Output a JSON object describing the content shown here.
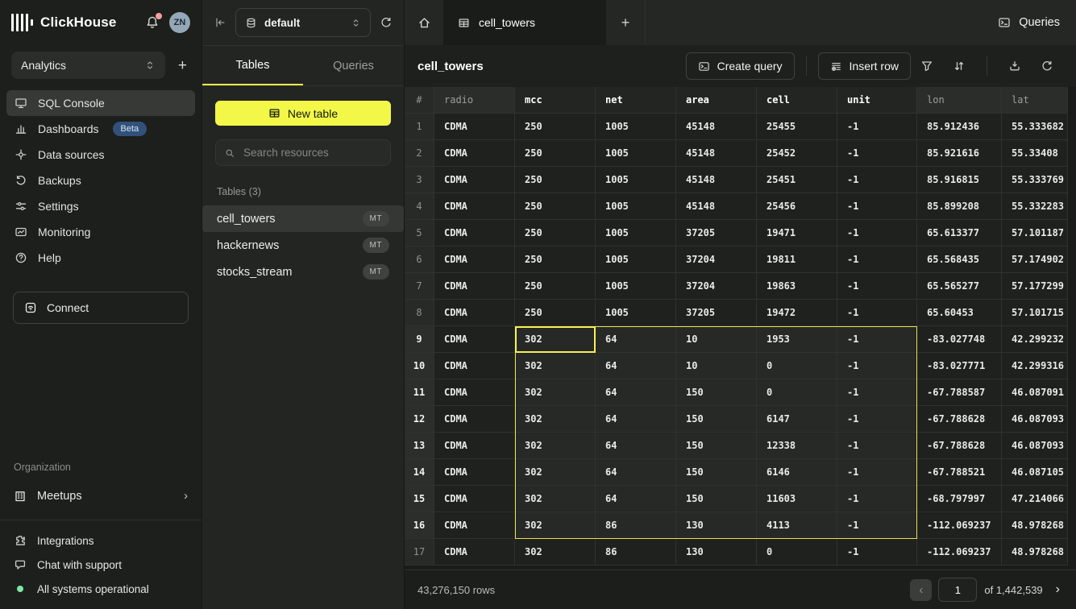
{
  "app": {
    "brand": "ClickHouse",
    "avatar_initials": "ZN",
    "workspace": "Analytics"
  },
  "icons": {
    "workspace_add": "+",
    "new_tab": "+",
    "meetups_chevron": "›",
    "pagination_prev": "‹",
    "pagination_next": "›"
  },
  "sidebar": {
    "nav": [
      {
        "label": "SQL Console"
      },
      {
        "label": "Dashboards",
        "badge": "Beta"
      },
      {
        "label": "Data sources"
      },
      {
        "label": "Backups"
      },
      {
        "label": "Settings"
      },
      {
        "label": "Monitoring"
      },
      {
        "label": "Help"
      }
    ],
    "connect_label": "Connect",
    "organization_label": "Organization",
    "meetups_label": "Meetups",
    "integrations_label": "Integrations",
    "chat_label": "Chat with support",
    "status_label": "All systems operational"
  },
  "explorer": {
    "database": "default",
    "tab_tables": "Tables",
    "tab_queries": "Queries",
    "new_table_label": "New table",
    "search_placeholder": "Search resources",
    "section_label": "Tables (3)",
    "tables": [
      {
        "name": "cell_towers",
        "badge": "MT"
      },
      {
        "name": "hackernews",
        "badge": "MT"
      },
      {
        "name": "stocks_stream",
        "badge": "MT"
      }
    ]
  },
  "main": {
    "tab_label": "cell_towers",
    "queries_label": "Queries",
    "title": "cell_towers",
    "create_query_label": "Create query",
    "insert_row_label": "Insert row"
  },
  "grid": {
    "row_number_header": "#",
    "columns": [
      "radio",
      "mcc",
      "net",
      "area",
      "cell",
      "unit",
      "lon",
      "lat"
    ],
    "rows": [
      [
        "CDMA",
        "250",
        "1005",
        "45148",
        "25455",
        "-1",
        "85.912436",
        "55.333682"
      ],
      [
        "CDMA",
        "250",
        "1005",
        "45148",
        "25452",
        "-1",
        "85.921616",
        "55.33408"
      ],
      [
        "CDMA",
        "250",
        "1005",
        "45148",
        "25451",
        "-1",
        "85.916815",
        "55.333769"
      ],
      [
        "CDMA",
        "250",
        "1005",
        "45148",
        "25456",
        "-1",
        "85.899208",
        "55.332283"
      ],
      [
        "CDMA",
        "250",
        "1005",
        "37205",
        "19471",
        "-1",
        "65.613377",
        "57.101187"
      ],
      [
        "CDMA",
        "250",
        "1005",
        "37204",
        "19811",
        "-1",
        "65.568435",
        "57.174902"
      ],
      [
        "CDMA",
        "250",
        "1005",
        "37204",
        "19863",
        "-1",
        "65.565277",
        "57.177299"
      ],
      [
        "CDMA",
        "250",
        "1005",
        "37205",
        "19472",
        "-1",
        "65.60453",
        "57.101715"
      ],
      [
        "CDMA",
        "302",
        "64",
        "10",
        "1953",
        "-1",
        "-83.027748",
        "42.299232"
      ],
      [
        "CDMA",
        "302",
        "64",
        "10",
        "0",
        "-1",
        "-83.027771",
        "42.299316"
      ],
      [
        "CDMA",
        "302",
        "64",
        "150",
        "0",
        "-1",
        "-67.788587",
        "46.087091"
      ],
      [
        "CDMA",
        "302",
        "64",
        "150",
        "6147",
        "-1",
        "-67.788628",
        "46.087093"
      ],
      [
        "CDMA",
        "302",
        "64",
        "150",
        "12338",
        "-1",
        "-67.788628",
        "46.087093"
      ],
      [
        "CDMA",
        "302",
        "64",
        "150",
        "6146",
        "-1",
        "-67.788521",
        "46.087105"
      ],
      [
        "CDMA",
        "302",
        "64",
        "150",
        "11603",
        "-1",
        "-68.797997",
        "47.214066"
      ],
      [
        "CDMA",
        "302",
        "86",
        "130",
        "4113",
        "-1",
        "-112.069237",
        "48.978268"
      ],
      [
        "CDMA",
        "302",
        "86",
        "130",
        "0",
        "-1",
        "-112.069237",
        "48.978268"
      ]
    ],
    "selection": {
      "row_start": 9,
      "row_end": 16,
      "col_start": "mcc",
      "col_end": "unit",
      "active_row": 9,
      "active_col": "mcc"
    }
  },
  "pagination": {
    "row_count": "43,276,150 rows",
    "page": "1",
    "of_label": "of 1,442,539"
  },
  "colors": {
    "accent_yellow": "#f3f748",
    "selection_border": "#ebdf4d",
    "active_cell_border": "#f8f052",
    "beta_badge_bg": "#31517a",
    "status_green": "#7de8a4",
    "notification_dot": "#f59f9f",
    "avatar_bg": "#94a7b7"
  }
}
